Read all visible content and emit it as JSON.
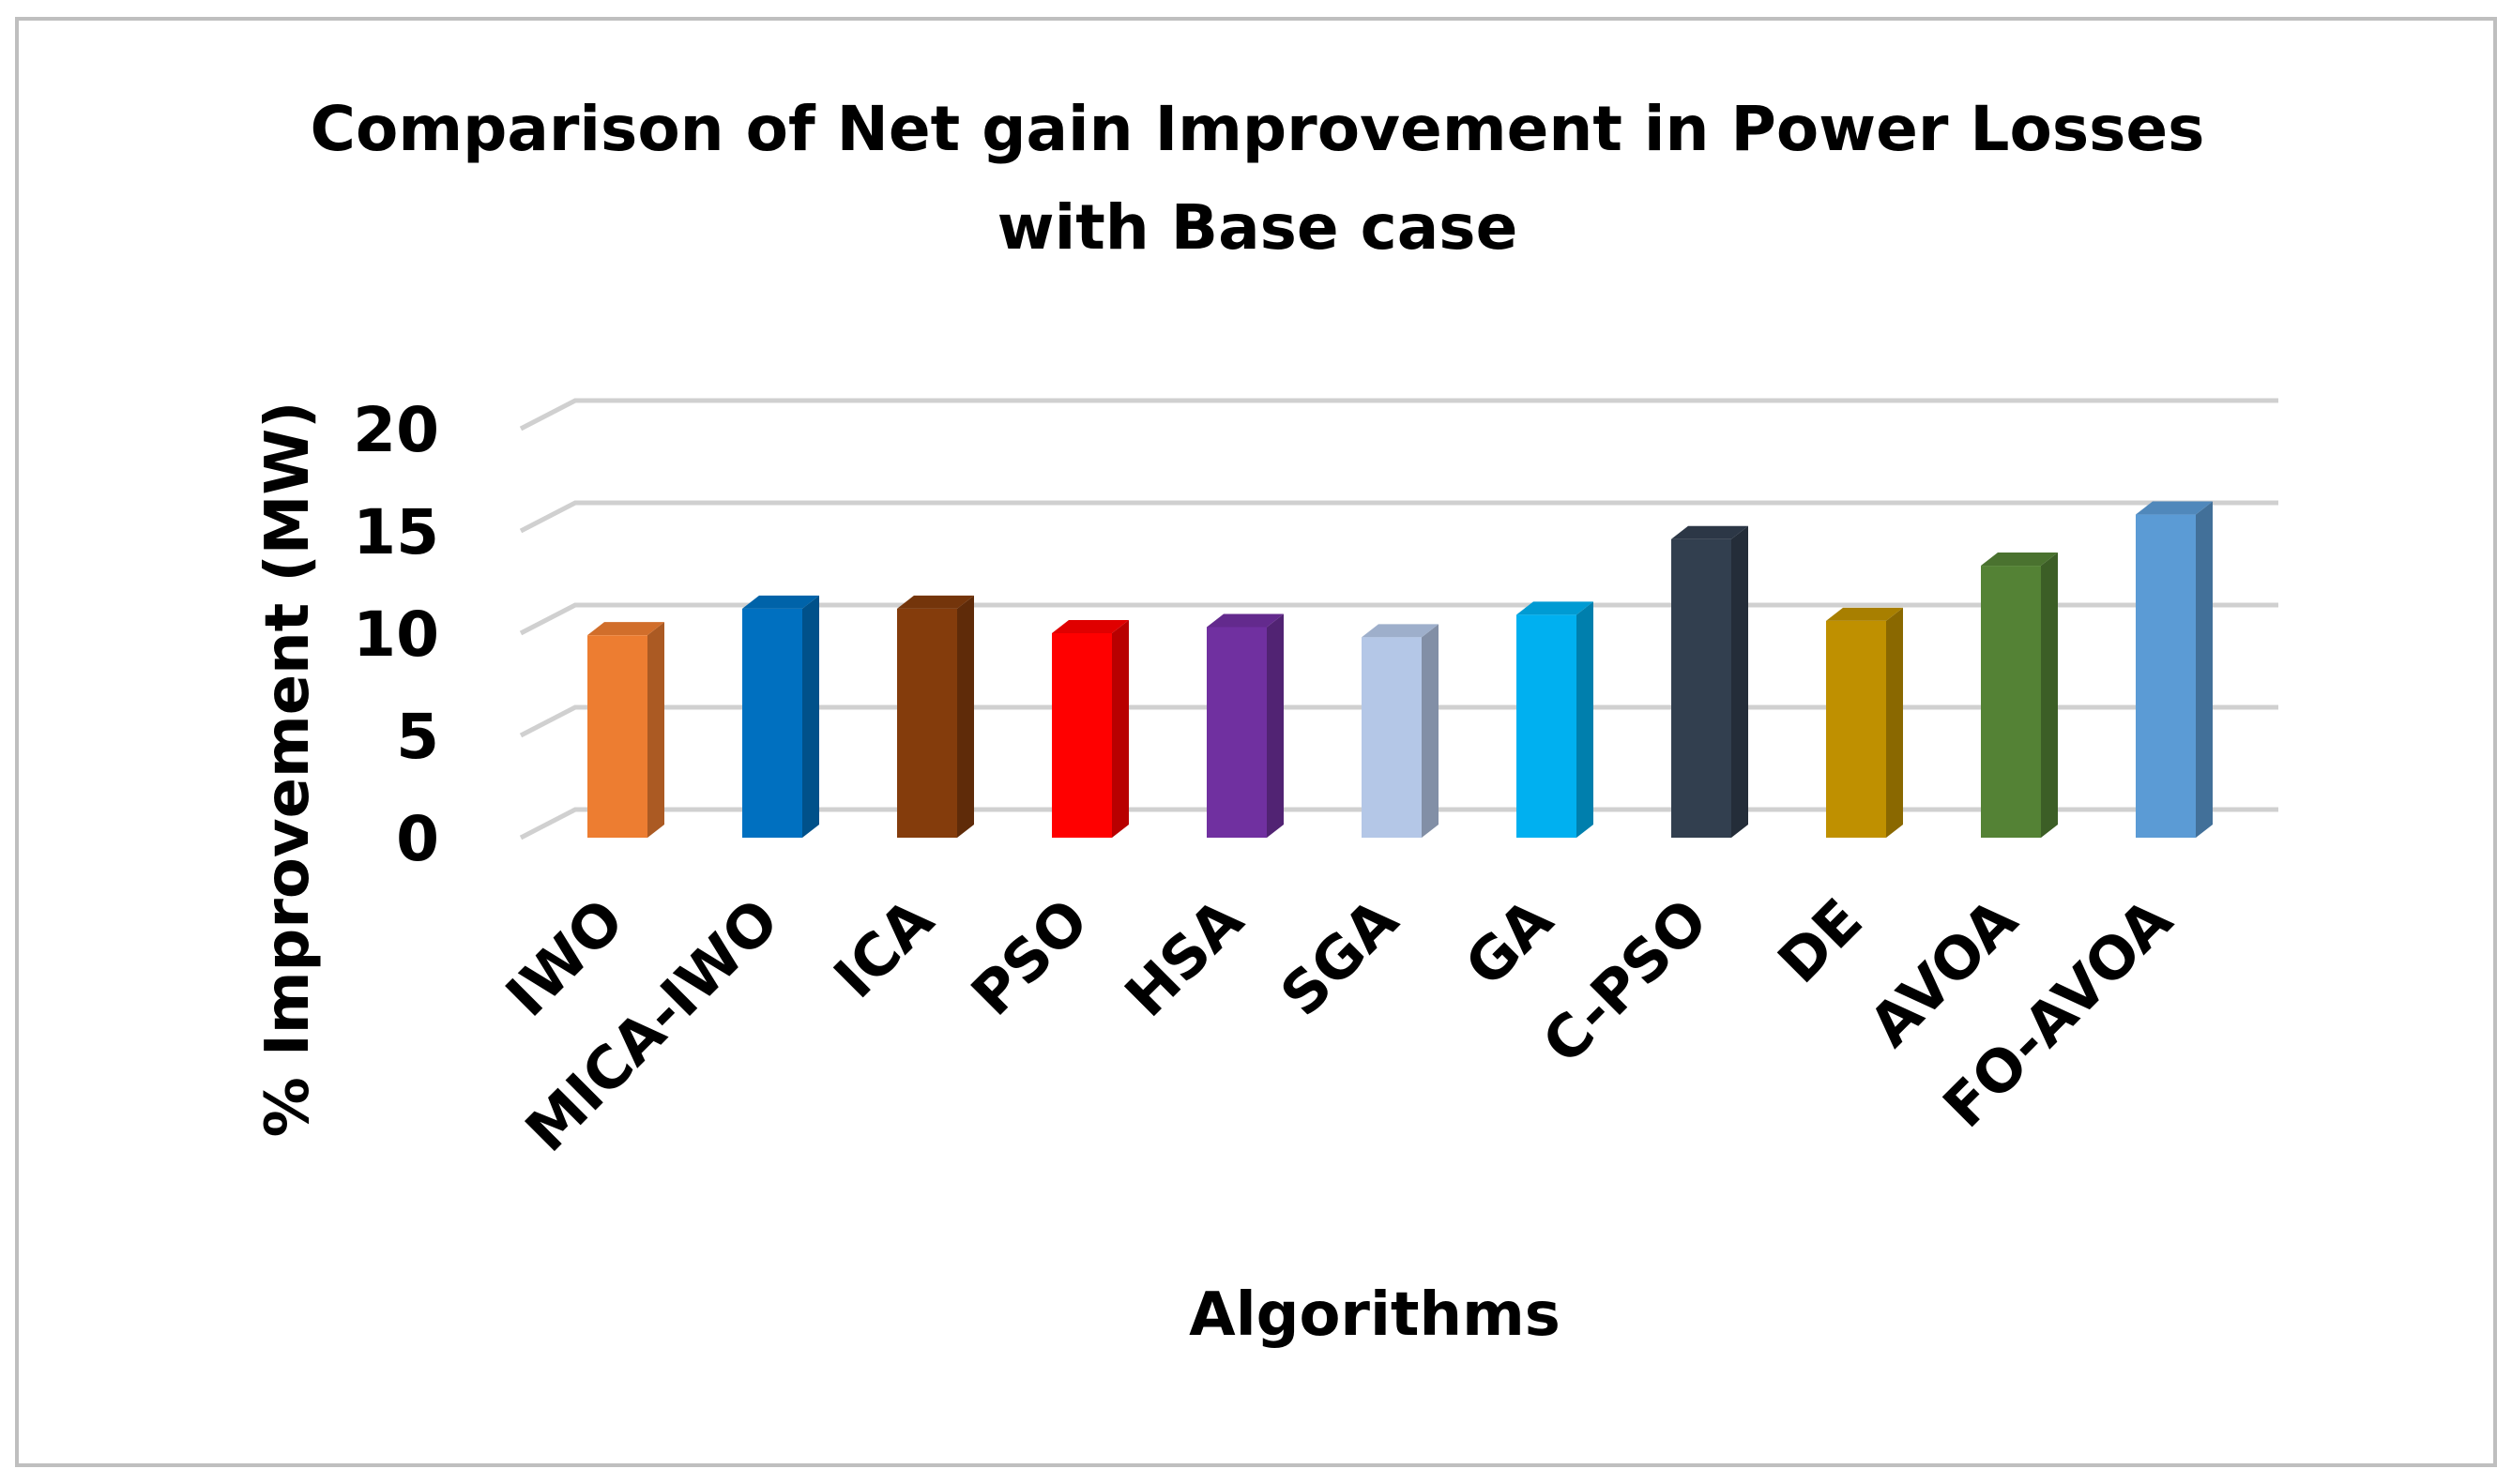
{
  "chart_data": {
    "type": "bar",
    "title_lines": [
      "Comparison of Net gain Improvement in Power Losses",
      "with Base case"
    ],
    "xlabel": "Algorithms",
    "ylabel": "% Improvement (MW)",
    "ylim": [
      0,
      20
    ],
    "yticks": [
      0,
      5,
      10,
      15,
      20
    ],
    "grid": true,
    "legend": "none",
    "categories": [
      "IWO",
      "MICA-IWO",
      "ICA",
      "PSO",
      "HSA",
      "SGA",
      "GA",
      "C-PSO",
      "DE",
      "AVOA",
      "FO-AVOA"
    ],
    "values": [
      9.9,
      11.2,
      11.2,
      10.0,
      10.3,
      9.8,
      10.9,
      14.6,
      10.6,
      13.3,
      15.8
    ],
    "colors": [
      "#ED7D31",
      "#0070C0",
      "#843C0C",
      "#FF0000",
      "#7030A0",
      "#B4C7E7",
      "#00B0F0",
      "#323F4F",
      "#BF9000",
      "#548235",
      "#5B9BD5"
    ]
  }
}
